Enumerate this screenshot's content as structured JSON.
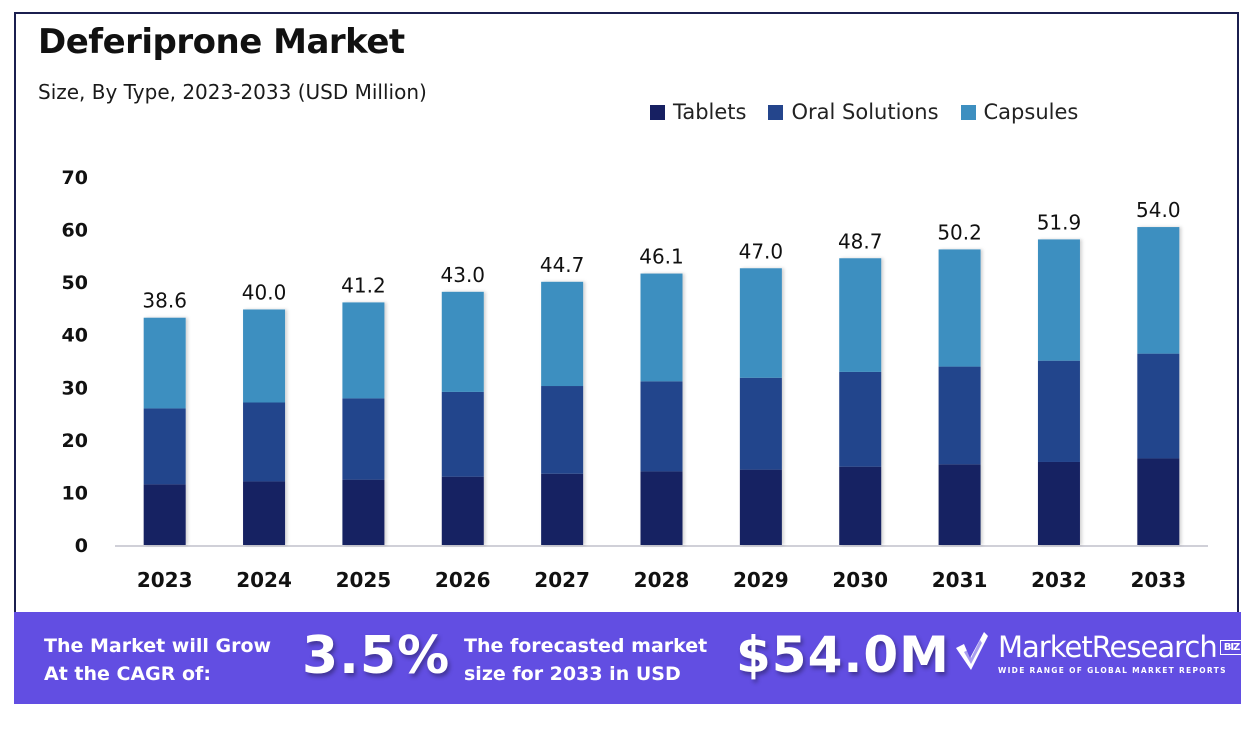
{
  "header": {
    "title": "Deferiprone Market",
    "subtitle": "Size, By Type, 2023-2033 (USD Million)"
  },
  "chart_data": {
    "type": "bar",
    "stacked": true,
    "title": "Deferiprone Market",
    "subtitle": "Size, By Type, 2023-2033 (USD Million)",
    "xlabel": "",
    "ylabel": "",
    "ylim": [
      0,
      70
    ],
    "yticks": [
      0,
      10,
      20,
      30,
      40,
      50,
      60,
      70
    ],
    "grid": false,
    "legend_position": "top-right",
    "categories": [
      "2023",
      "2024",
      "2025",
      "2026",
      "2027",
      "2028",
      "2029",
      "2030",
      "2031",
      "2032",
      "2033"
    ],
    "series": [
      {
        "name": "Tablets",
        "color": "#172062",
        "values": [
          10.3,
          10.8,
          11.1,
          11.6,
          12.1,
          12.5,
          12.8,
          13.3,
          13.7,
          14.1,
          14.7
        ]
      },
      {
        "name": "Oral Solutions",
        "color": "#24458c",
        "values": [
          12.9,
          13.4,
          13.8,
          14.4,
          14.9,
          15.3,
          15.6,
          16.1,
          16.6,
          17.2,
          17.8
        ]
      },
      {
        "name": "Capsules",
        "color": "#3d8fc0",
        "values": [
          15.4,
          15.8,
          16.3,
          17.0,
          17.7,
          18.3,
          18.6,
          19.3,
          19.9,
          20.6,
          21.5
        ]
      }
    ],
    "totals": [
      38.6,
      40.0,
      41.2,
      43.0,
      44.7,
      46.1,
      47.0,
      48.7,
      50.2,
      51.9,
      54.0
    ],
    "total_labels": [
      "38.6",
      "40.0",
      "41.2",
      "43.0",
      "44.7",
      "46.1",
      "47.0",
      "48.7",
      "50.2",
      "51.9",
      "54.0"
    ]
  },
  "legend": [
    {
      "label": "Tablets",
      "color": "#172062"
    },
    {
      "label": "Oral Solutions",
      "color": "#24458c"
    },
    {
      "label": "Capsules",
      "color": "#3d8fc0"
    }
  ],
  "banner": {
    "background": "#624ee2",
    "cagr_text_line1": "The Market will Grow",
    "cagr_text_line2": "At the CAGR of:",
    "cagr_value": "3.5%",
    "forecast_text_line1": "The forecasted market",
    "forecast_text_line2": "size for 2033 in USD",
    "forecast_value": "$54.0M",
    "logo_icon": "checkmark-logo-icon",
    "logo_name": "MarketResearch",
    "logo_badge": "BIZ",
    "logo_tagline": "WIDE RANGE OF GLOBAL MARKET REPORTS"
  }
}
